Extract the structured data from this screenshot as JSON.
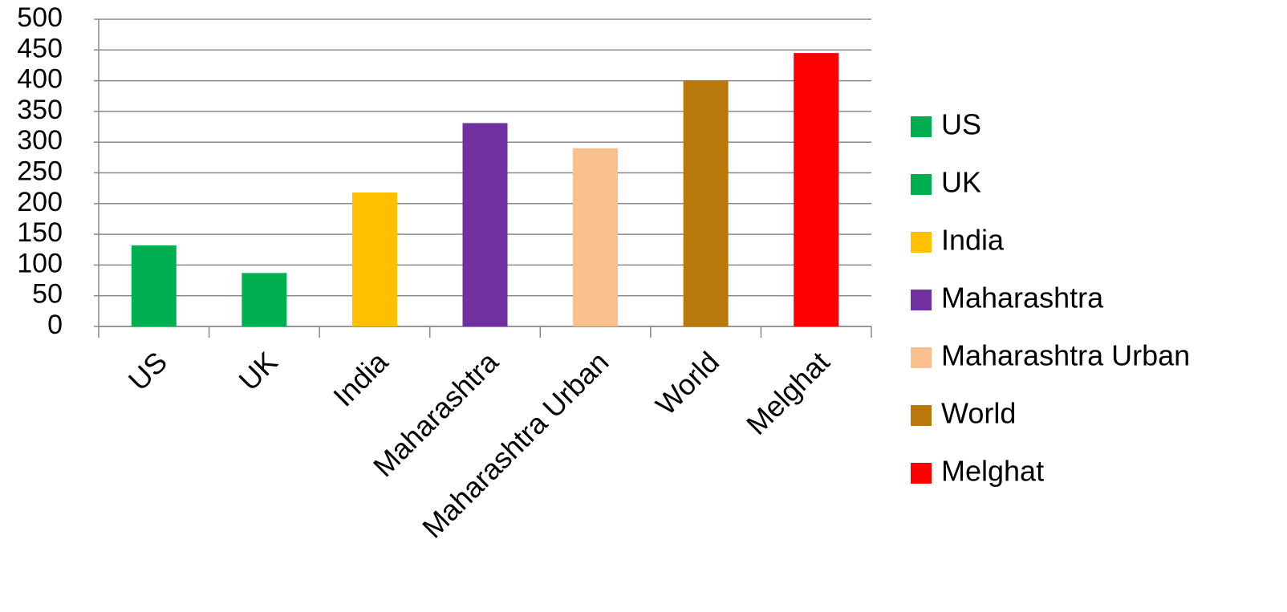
{
  "chart_data": {
    "type": "bar",
    "categories": [
      "US",
      "UK",
      "India",
      "Maharashtra",
      "Maharashtra  Urban",
      "World",
      "Melghat"
    ],
    "values": [
      132,
      87,
      218,
      331,
      290,
      400,
      445
    ],
    "colors": [
      "#00b050",
      "#00b050",
      "#ffc000",
      "#7030a0",
      "#f8bf8f",
      "#b8780a",
      "#ff0000"
    ],
    "ylim": [
      0,
      500
    ],
    "yticks": [
      0,
      50,
      100,
      150,
      200,
      250,
      300,
      350,
      400,
      450,
      500
    ],
    "grid": true,
    "legend": "right"
  }
}
